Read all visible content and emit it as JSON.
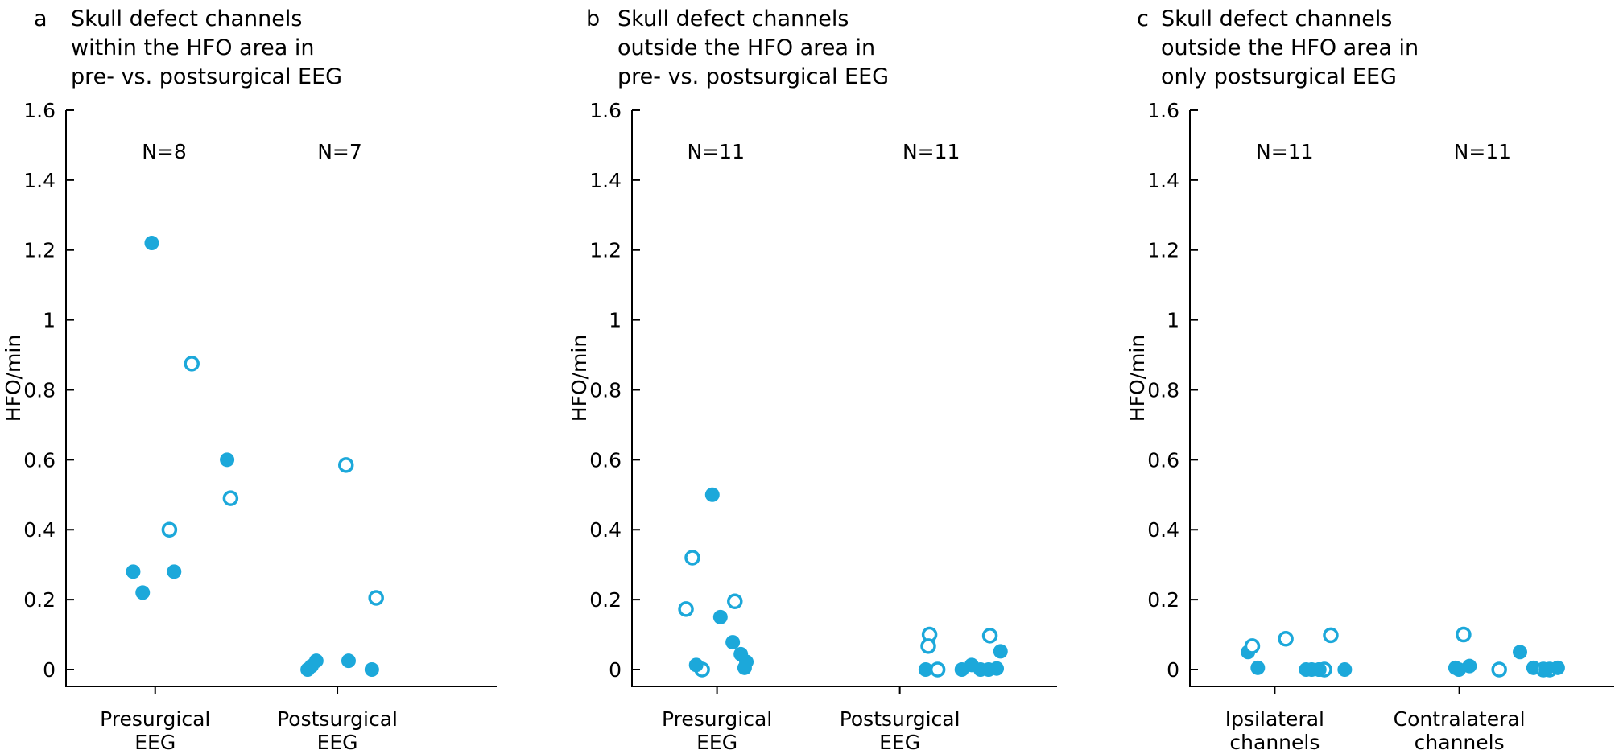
{
  "figure_name": "HFO rate scatter figure",
  "colors": {
    "marker": "#1CA8DA",
    "axis": "#000000",
    "background": "#ffffff"
  },
  "chart_data": [
    {
      "type": "scatter",
      "panel_letter": "a",
      "title_lines": [
        "Skull defect channels",
        "within the HFO area in",
        "pre- vs. postsurgical EEG"
      ],
      "ylabel": "HFO/min",
      "ylim": [
        0,
        1.6
      ],
      "ytick_labels": [
        "0",
        "0.2",
        "0.4",
        "0.6",
        "0.8",
        "1",
        "1.2",
        "1.4",
        "1.6"
      ],
      "grid": false,
      "groups": [
        {
          "label_lines": [
            "Presurgical",
            "EEG"
          ],
          "n_label": "N=8",
          "points": [
            {
              "v": 1.22,
              "filled": true,
              "dx": -0.05
            },
            {
              "v": 0.875,
              "filled": false,
              "dx": 0.043
            },
            {
              "v": 0.6,
              "filled": true,
              "dx": 0.125
            },
            {
              "v": 0.49,
              "filled": false,
              "dx": 0.133
            },
            {
              "v": 0.4,
              "filled": false,
              "dx": -0.009
            },
            {
              "v": 0.28,
              "filled": true,
              "dx": -0.093
            },
            {
              "v": 0.28,
              "filled": true,
              "dx": 0.002
            },
            {
              "v": 0.22,
              "filled": true,
              "dx": -0.071
            }
          ]
        },
        {
          "label_lines": [
            "Postsurgical",
            "EEG"
          ],
          "n_label": "N=7",
          "points": [
            {
              "v": 0.585,
              "filled": false,
              "dx": 0.009
            },
            {
              "v": 0.205,
              "filled": false,
              "dx": 0.079
            },
            {
              "v": 0.025,
              "filled": true,
              "dx": -0.06
            },
            {
              "v": 0.025,
              "filled": true,
              "dx": 0.015
            },
            {
              "v": 0.01,
              "filled": true,
              "dx": -0.071
            },
            {
              "v": 0.0,
              "filled": true,
              "dx": -0.08
            },
            {
              "v": 0.0,
              "filled": true,
              "dx": 0.069
            }
          ]
        }
      ]
    },
    {
      "type": "scatter",
      "panel_letter": "b",
      "title_lines": [
        "Skull defect channels",
        "outside the HFO area in",
        "pre- vs. postsurgical EEG"
      ],
      "ylabel": "HFO/min",
      "ylim": [
        0,
        1.6
      ],
      "ytick_labels": [
        "0",
        "0.2",
        "0.4",
        "0.6",
        "0.8",
        "1",
        "1.2",
        "1.4",
        "1.6"
      ],
      "grid": false,
      "groups": [
        {
          "label_lines": [
            "Presurgical",
            "EEG"
          ],
          "n_label": "N=11",
          "points": [
            {
              "v": 0.5,
              "filled": true,
              "dx": -0.006
            },
            {
              "v": 0.32,
              "filled": false,
              "dx": -0.053
            },
            {
              "v": 0.195,
              "filled": false,
              "dx": 0.047
            },
            {
              "v": 0.173,
              "filled": false,
              "dx": -0.068
            },
            {
              "v": 0.15,
              "filled": true,
              "dx": 0.013
            },
            {
              "v": 0.078,
              "filled": true,
              "dx": 0.042
            },
            {
              "v": 0.044,
              "filled": true,
              "dx": 0.061
            },
            {
              "v": 0.0,
              "filled": false,
              "dx": -0.03
            },
            {
              "v": 0.022,
              "filled": true,
              "dx": 0.074
            },
            {
              "v": 0.013,
              "filled": true,
              "dx": -0.044
            },
            {
              "v": 0.005,
              "filled": true,
              "dx": 0.07
            }
          ]
        },
        {
          "label_lines": [
            "Postsurgical",
            "EEG"
          ],
          "n_label": "N=11",
          "points": [
            {
              "v": 0.1,
              "filled": false,
              "dx": -0.078
            },
            {
              "v": 0.067,
              "filled": false,
              "dx": -0.081
            },
            {
              "v": 0.0,
              "filled": true,
              "dx": -0.087
            },
            {
              "v": 0.0,
              "filled": false,
              "dx": -0.059
            },
            {
              "v": 0.0,
              "filled": true,
              "dx": -0.002
            },
            {
              "v": 0.013,
              "filled": true,
              "dx": 0.021
            },
            {
              "v": 0.0,
              "filled": true,
              "dx": 0.042
            },
            {
              "v": 0.0,
              "filled": true,
              "dx": 0.061
            },
            {
              "v": 0.097,
              "filled": false,
              "dx": 0.064
            },
            {
              "v": 0.003,
              "filled": true,
              "dx": 0.08
            },
            {
              "v": 0.052,
              "filled": true,
              "dx": 0.089
            }
          ]
        }
      ]
    },
    {
      "type": "scatter",
      "panel_letter": "c",
      "title_lines": [
        "Skull defect channels",
        "outside the HFO area in",
        "only postsurgical EEG"
      ],
      "ylabel": "HFO/min",
      "ylim": [
        0,
        1.6
      ],
      "ytick_labels": [
        "0",
        "0.2",
        "0.4",
        "0.6",
        "0.8",
        "1",
        "1.2",
        "1.4",
        "1.6"
      ],
      "grid": false,
      "groups": [
        {
          "label_lines": [
            "Ipsilateral",
            "channels"
          ],
          "n_label": "N=11",
          "points": [
            {
              "v": 0.05,
              "filled": true,
              "dx": -0.11
            },
            {
              "v": 0.067,
              "filled": false,
              "dx": -0.1
            },
            {
              "v": 0.005,
              "filled": true,
              "dx": -0.087
            },
            {
              "v": 0.088,
              "filled": false,
              "dx": -0.021
            },
            {
              "v": 0.098,
              "filled": false,
              "dx": 0.085
            },
            {
              "v": 0.0,
              "filled": true,
              "dx": 0.027
            },
            {
              "v": 0.0,
              "filled": true,
              "dx": 0.04
            },
            {
              "v": 0.0,
              "filled": false,
              "dx": 0.07
            },
            {
              "v": 0.0,
              "filled": true,
              "dx": 0.057
            },
            {
              "v": 0.0,
              "filled": true,
              "dx": 0.118
            },
            {
              "v": 0.0,
              "filled": true,
              "dx": 0.058
            }
          ]
        },
        {
          "label_lines": [
            "Contralateral",
            "channels"
          ],
          "n_label": "N=11",
          "points": [
            {
              "v": 0.1,
              "filled": false,
              "dx": -0.099
            },
            {
              "v": 0.005,
              "filled": true,
              "dx": -0.118
            },
            {
              "v": 0.01,
              "filled": true,
              "dx": -0.085
            },
            {
              "v": 0.0,
              "filled": false,
              "dx": -0.015
            },
            {
              "v": 0.05,
              "filled": true,
              "dx": 0.034
            },
            {
              "v": 0.005,
              "filled": true,
              "dx": 0.066
            },
            {
              "v": 0.0,
              "filled": true,
              "dx": -0.11
            },
            {
              "v": 0.0,
              "filled": false,
              "dx": 0.089
            },
            {
              "v": 0.0,
              "filled": false,
              "dx": 0.104
            },
            {
              "v": 0.0,
              "filled": true,
              "dx": 0.095
            },
            {
              "v": 0.005,
              "filled": true,
              "dx": 0.123
            }
          ]
        }
      ]
    }
  ]
}
